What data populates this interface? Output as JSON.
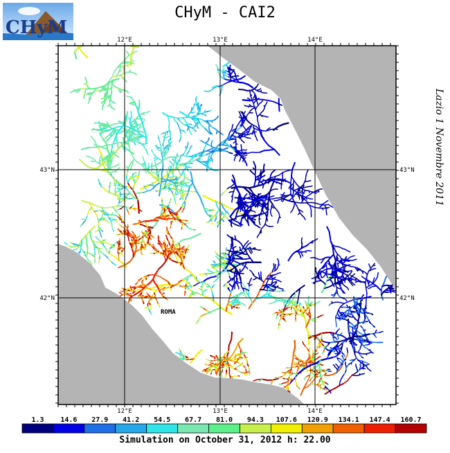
{
  "title": "CHyM - CAI2",
  "side_label": "Lazio 1 Novembre 2011",
  "footer": "Simulation on October 31, 2012 h: 22.00",
  "logo_text": "CHyM",
  "place_label": "ROMA",
  "lon_ticks": [
    "12°E",
    "13°E",
    "14°E"
  ],
  "lat_ticks": [
    "43°N",
    "42°N"
  ],
  "colorbar": {
    "labels": [
      "1.3",
      "14.6",
      "27.9",
      "41.2",
      "54.5",
      "67.7",
      "81.0",
      "94.3",
      "107.6",
      "120.9",
      "134.1",
      "147.4",
      "160.7"
    ],
    "colors": [
      "#00007f",
      "#0000e6",
      "#1f6fe6",
      "#25a8ea",
      "#2ee6e6",
      "#7ae6b0",
      "#5cf08a",
      "#c8f04a",
      "#f0f000",
      "#f0a000",
      "#f06000",
      "#f01e00",
      "#b40000"
    ]
  },
  "map": {
    "sea_color": "#b4b4b4",
    "land_color": "#ffffff"
  }
}
